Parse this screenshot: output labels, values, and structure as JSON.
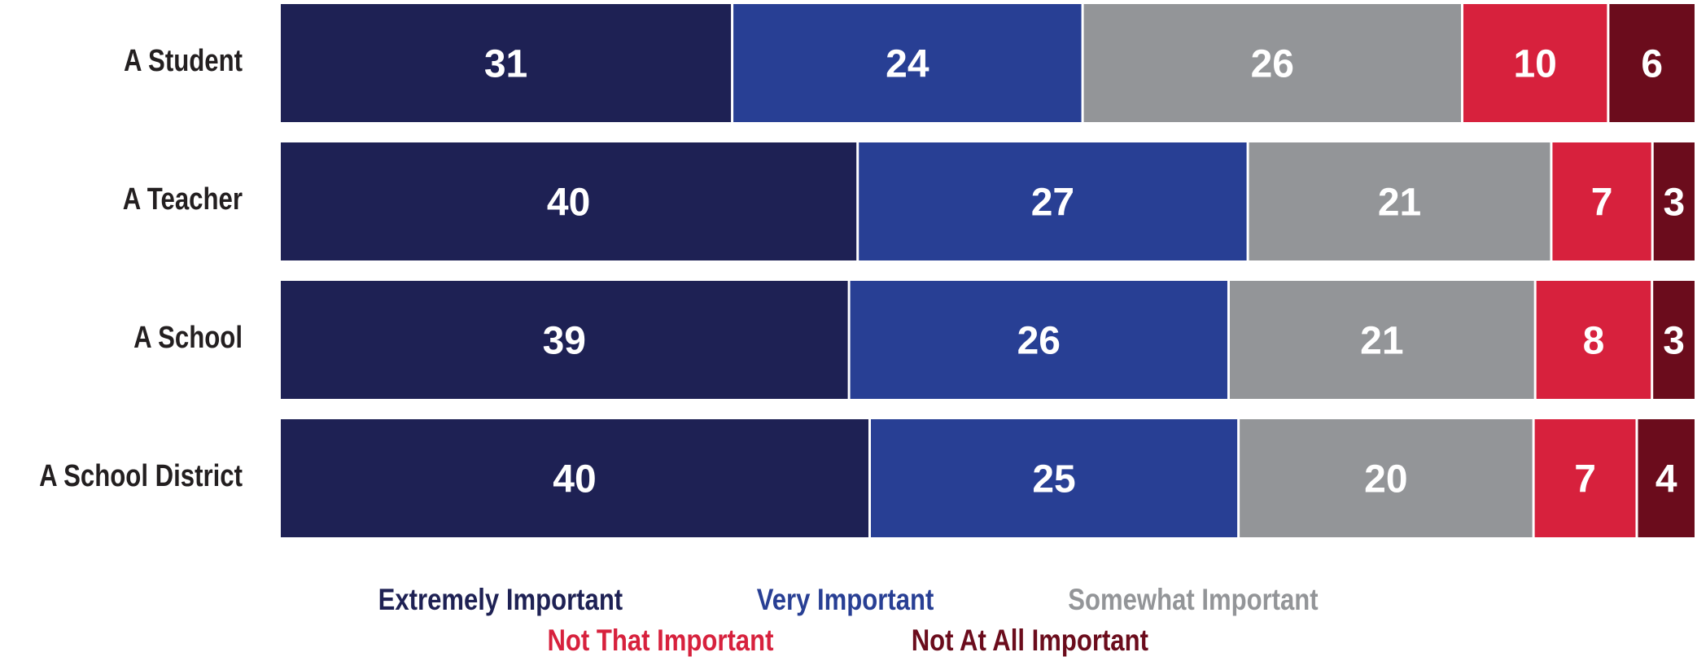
{
  "chart_data": {
    "type": "bar",
    "orientation": "horizontal",
    "stacked": true,
    "categories": [
      "A Student",
      "A Teacher",
      "A School",
      "A School District"
    ],
    "series": [
      {
        "name": "Extremely Important",
        "color": "#1e2154",
        "values": [
          31,
          40,
          39,
          40
        ]
      },
      {
        "name": "Very Important",
        "color": "#283f94",
        "values": [
          24,
          27,
          26,
          25
        ]
      },
      {
        "name": "Somewhat Important",
        "color": "#939598",
        "values": [
          26,
          21,
          21,
          20
        ]
      },
      {
        "name": "Not That Important",
        "color": "#d7213d",
        "values": [
          10,
          7,
          8,
          7
        ]
      },
      {
        "name": "Not At All Important",
        "color": "#6b0c1c",
        "values": [
          6,
          3,
          3,
          4
        ]
      }
    ],
    "title": "",
    "xlabel": "",
    "ylabel": "",
    "grid": false,
    "legend_position": "bottom"
  }
}
